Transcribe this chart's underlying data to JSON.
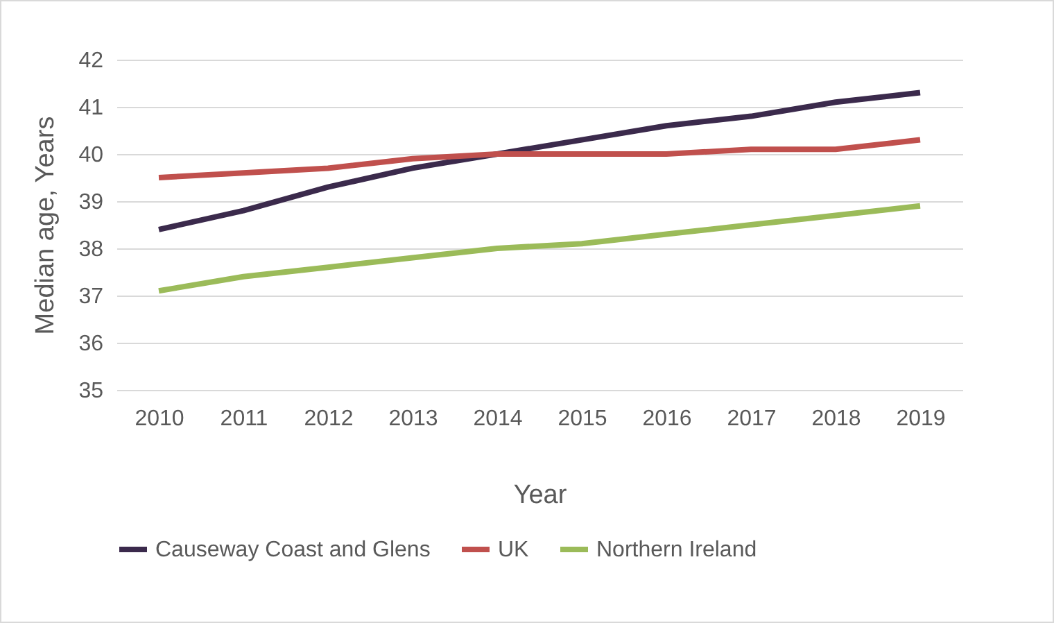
{
  "chart_data": {
    "type": "line",
    "xlabel": "Year",
    "ylabel": "Median age, Years",
    "categories": [
      "2010",
      "2011",
      "2012",
      "2013",
      "2014",
      "2015",
      "2016",
      "2017",
      "2018",
      "2019"
    ],
    "series": [
      {
        "name": "Causeway Coast and Glens",
        "color": "#3b2a4c",
        "values": [
          38.4,
          38.8,
          39.3,
          39.7,
          40.0,
          40.3,
          40.6,
          40.8,
          41.1,
          41.3
        ]
      },
      {
        "name": "UK",
        "color": "#c0504d",
        "values": [
          39.5,
          39.6,
          39.7,
          39.9,
          40.0,
          40.0,
          40.0,
          40.1,
          40.1,
          40.3
        ]
      },
      {
        "name": "Northern Ireland",
        "color": "#9bbb59",
        "values": [
          37.1,
          37.4,
          37.6,
          37.8,
          38.0,
          38.1,
          38.3,
          38.5,
          38.7,
          38.9
        ]
      }
    ],
    "ylim": [
      35,
      42
    ],
    "yticks": [
      35,
      36,
      37,
      38,
      39,
      40,
      41,
      42
    ],
    "grid": "y",
    "legend": "bottom",
    "marker": "none",
    "line_style": "solid"
  }
}
